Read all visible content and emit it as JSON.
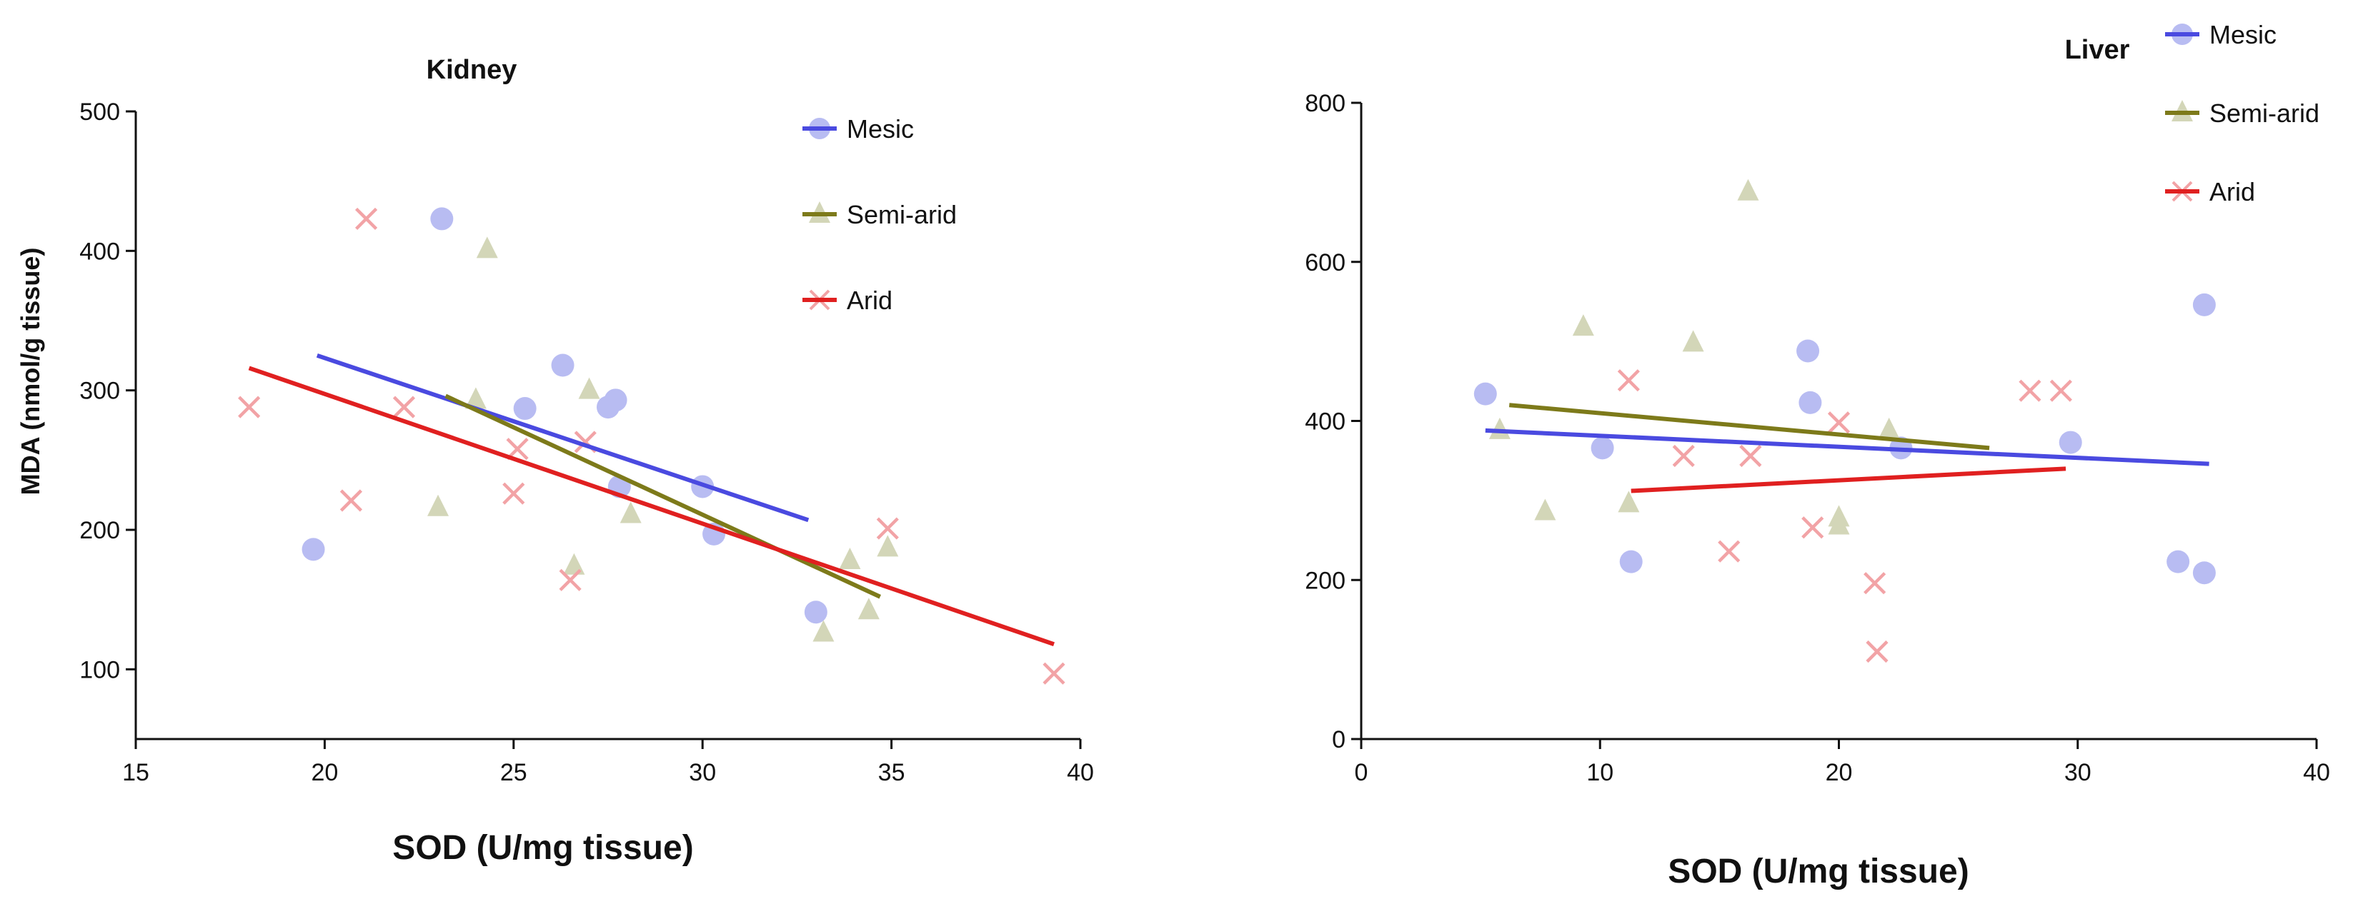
{
  "chart_data": [
    {
      "type": "scatter",
      "title": "Kidney",
      "xlabel": "SOD (U/mg tissue)",
      "ylabel": "MDA (nmol/g tissue)",
      "xlim": [
        15,
        40
      ],
      "ylim": [
        50,
        500
      ],
      "x_ticks": [
        15,
        20,
        25,
        30,
        35,
        40
      ],
      "y_ticks": [
        100,
        200,
        300,
        400,
        500
      ],
      "legend_position": "top-right",
      "series": [
        {
          "name": "Mesic",
          "color": "#4a4ae0",
          "point_color": "#b8bcf2",
          "marker": "circle",
          "points": [
            [
              19.7,
              186
            ],
            [
              23.1,
              423
            ],
            [
              25.3,
              287
            ],
            [
              26.3,
              318
            ],
            [
              27.5,
              288
            ],
            [
              27.7,
              293
            ],
            [
              27.8,
              231
            ],
            [
              30.0,
              231
            ],
            [
              30.3,
              197
            ],
            [
              33.0,
              141
            ]
          ],
          "fit": [
            [
              19.8,
              325
            ],
            [
              32.8,
              207
            ]
          ]
        },
        {
          "name": "Semi-arid",
          "color": "#7d7a1a",
          "point_color": "#d3d6b8",
          "marker": "triangle",
          "points": [
            [
              23.0,
              216
            ],
            [
              24.0,
              293
            ],
            [
              24.3,
              401
            ],
            [
              26.6,
              174
            ],
            [
              27.0,
              300
            ],
            [
              28.1,
              211
            ],
            [
              33.2,
              126
            ],
            [
              33.9,
              178
            ],
            [
              34.4,
              142
            ],
            [
              34.9,
              187
            ]
          ],
          "fit": [
            [
              23.2,
              296
            ],
            [
              34.7,
              152
            ]
          ]
        },
        {
          "name": "Arid",
          "color": "#e02020",
          "point_color": "#f2a3a6",
          "marker": "x",
          "points": [
            [
              18.0,
              288
            ],
            [
              20.7,
              221
            ],
            [
              21.1,
              423
            ],
            [
              22.1,
              288
            ],
            [
              25.0,
              226
            ],
            [
              25.1,
              258
            ],
            [
              26.5,
              164
            ],
            [
              26.9,
              263
            ],
            [
              34.9,
              201
            ],
            [
              39.3,
              97
            ]
          ],
          "fit": [
            [
              18.0,
              316
            ],
            [
              39.3,
              118
            ]
          ]
        }
      ]
    },
    {
      "type": "scatter",
      "title": "Liver",
      "xlabel": "SOD (U/mg tissue)",
      "ylabel": "",
      "xlim": [
        0,
        40
      ],
      "ylim": [
        0,
        800
      ],
      "x_ticks": [
        0,
        10,
        20,
        30,
        40
      ],
      "y_ticks": [
        0,
        200,
        400,
        600,
        800
      ],
      "legend_position": "top-right",
      "series": [
        {
          "name": "Mesic",
          "color": "#4a4ae0",
          "point_color": "#b8bcf2",
          "marker": "circle",
          "points": [
            [
              5.2,
              434
            ],
            [
              10.1,
              366
            ],
            [
              11.3,
              223
            ],
            [
              18.7,
              488
            ],
            [
              18.8,
              423
            ],
            [
              22.6,
              366
            ],
            [
              29.7,
              373
            ],
            [
              34.2,
              223
            ],
            [
              35.3,
              546
            ],
            [
              35.3,
              209
            ]
          ],
          "fit": [
            [
              5.2,
              388
            ],
            [
              35.5,
              346
            ]
          ]
        },
        {
          "name": "Semi-arid",
          "color": "#7d7a1a",
          "point_color": "#d3d6b8",
          "marker": "triangle",
          "points": [
            [
              5.8,
              388
            ],
            [
              7.7,
              286
            ],
            [
              9.3,
              518
            ],
            [
              11.2,
              296
            ],
            [
              13.9,
              498
            ],
            [
              16.2,
              688
            ],
            [
              20.0,
              268
            ],
            [
              20.0,
              278
            ],
            [
              22.1,
              388
            ]
          ],
          "fit": [
            [
              6.2,
              420
            ],
            [
              26.3,
              366
            ]
          ]
        },
        {
          "name": "Arid",
          "color": "#e02020",
          "point_color": "#f2a3a6",
          "marker": "x",
          "points": [
            [
              11.2,
              451
            ],
            [
              13.5,
              356
            ],
            [
              15.4,
              236
            ],
            [
              16.3,
              356
            ],
            [
              18.9,
              266
            ],
            [
              20.0,
              398
            ],
            [
              21.5,
              196
            ],
            [
              21.6,
              110
            ],
            [
              28.0,
              438
            ],
            [
              29.3,
              438
            ]
          ],
          "fit": [
            [
              11.3,
              312
            ],
            [
              29.5,
              340
            ]
          ]
        }
      ]
    }
  ]
}
